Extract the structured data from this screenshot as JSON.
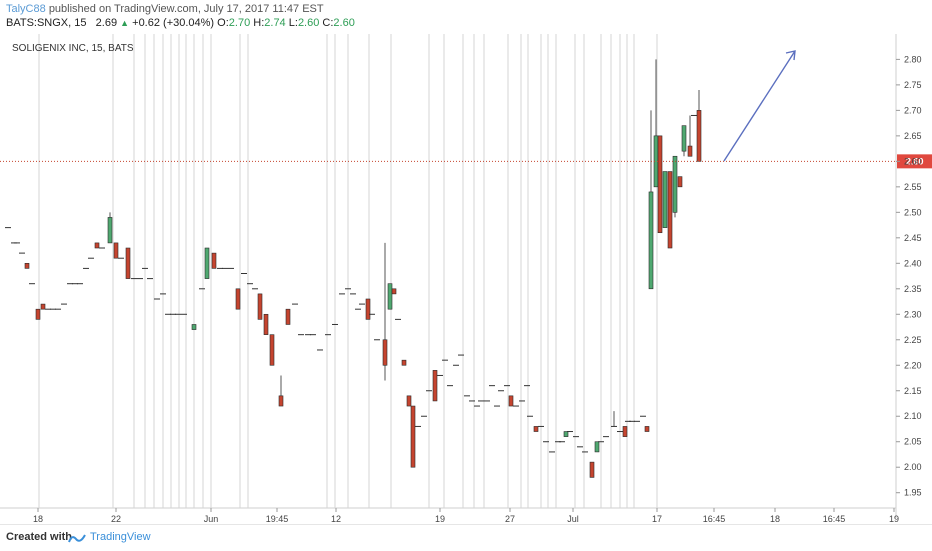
{
  "header": {
    "author": "TalyC88",
    "published": "published on TradingView.com, July 17, 2017 11:47 EST",
    "symbol": "BATS:SNGX, 15",
    "last": "2.69",
    "change": "+0.62 (+30.04%)",
    "o_label": "O:",
    "o_val": "2.70",
    "h_label": "H:",
    "h_val": "2.74",
    "l_label": "L:",
    "l_val": "2.60",
    "c_label": "C:",
    "c_val": "2.60"
  },
  "footer": {
    "created": "Created with",
    "brand": "TradingView"
  },
  "chart_data": {
    "type": "candlestick",
    "title": "SOLIGENIX INC, 15, BATS",
    "ylim": [
      1.92,
      2.84
    ],
    "y_ticks": [
      1.95,
      2.0,
      2.05,
      2.1,
      2.15,
      2.2,
      2.25,
      2.3,
      2.35,
      2.4,
      2.45,
      2.5,
      2.55,
      2.6,
      2.65,
      2.7,
      2.75,
      2.8
    ],
    "x_ticks": [
      "18",
      "22",
      "Jun",
      "19:45",
      "12",
      "19",
      "27",
      "Jul",
      "17",
      "16:45",
      "18",
      "16:45",
      "19"
    ],
    "current_price": "2.60",
    "colors": {
      "up": "#4fa870",
      "down": "#c5442f",
      "line": "#c5442f",
      "arrow": "#5b6fbf",
      "session": "#d4d4d4",
      "label_bg": "#e0483e"
    },
    "candles": [
      {
        "o": 2.47,
        "h": 2.47,
        "l": 2.47,
        "c": 2.47
      },
      {
        "o": 2.44,
        "h": 2.44,
        "l": 2.44,
        "c": 2.44
      },
      {
        "o": 2.44,
        "h": 2.44,
        "l": 2.44,
        "c": 2.44
      },
      {
        "o": 2.42,
        "h": 2.42,
        "l": 2.42,
        "c": 2.42
      },
      {
        "o": 2.4,
        "h": 2.4,
        "l": 2.39,
        "c": 2.39
      },
      {
        "o": 2.36,
        "h": 2.36,
        "l": 2.36,
        "c": 2.36
      },
      {
        "o": 2.31,
        "h": 2.31,
        "l": 2.29,
        "c": 2.29
      },
      {
        "o": 2.32,
        "h": 2.32,
        "l": 2.31,
        "c": 2.31
      },
      {
        "o": 2.31,
        "h": 2.31,
        "l": 2.31,
        "c": 2.31
      },
      {
        "o": 2.31,
        "h": 2.31,
        "l": 2.31,
        "c": 2.31
      },
      {
        "o": 2.31,
        "h": 2.31,
        "l": 2.31,
        "c": 2.31
      },
      {
        "o": 2.32,
        "h": 2.32,
        "l": 2.32,
        "c": 2.32
      },
      {
        "o": 2.36,
        "h": 2.36,
        "l": 2.36,
        "c": 2.36
      },
      {
        "o": 2.36,
        "h": 2.36,
        "l": 2.36,
        "c": 2.36
      },
      {
        "o": 2.36,
        "h": 2.36,
        "l": 2.36,
        "c": 2.36
      },
      {
        "o": 2.39,
        "h": 2.39,
        "l": 2.39,
        "c": 2.39
      },
      {
        "o": 2.41,
        "h": 2.41,
        "l": 2.41,
        "c": 2.41
      },
      {
        "o": 2.44,
        "h": 2.44,
        "l": 2.43,
        "c": 2.43
      },
      {
        "o": 2.43,
        "h": 2.43,
        "l": 2.43,
        "c": 2.43
      },
      {
        "o": 2.44,
        "h": 2.5,
        "l": 2.44,
        "c": 2.49
      },
      {
        "o": 2.44,
        "h": 2.44,
        "l": 2.41,
        "c": 2.41
      },
      {
        "o": 2.41,
        "h": 2.41,
        "l": 2.41,
        "c": 2.41
      },
      {
        "o": 2.43,
        "h": 2.43,
        "l": 2.37,
        "c": 2.37
      },
      {
        "o": 2.37,
        "h": 2.37,
        "l": 2.37,
        "c": 2.37
      },
      {
        "o": 2.37,
        "h": 2.37,
        "l": 2.37,
        "c": 2.37
      },
      {
        "o": 2.39,
        "h": 2.39,
        "l": 2.39,
        "c": 2.39
      },
      {
        "o": 2.37,
        "h": 2.37,
        "l": 2.37,
        "c": 2.37
      },
      {
        "o": 2.33,
        "h": 2.33,
        "l": 2.33,
        "c": 2.33
      },
      {
        "o": 2.34,
        "h": 2.34,
        "l": 2.34,
        "c": 2.34
      },
      {
        "o": 2.3,
        "h": 2.3,
        "l": 2.3,
        "c": 2.3
      },
      {
        "o": 2.3,
        "h": 2.3,
        "l": 2.3,
        "c": 2.3
      },
      {
        "o": 2.3,
        "h": 2.3,
        "l": 2.3,
        "c": 2.3
      },
      {
        "o": 2.3,
        "h": 2.3,
        "l": 2.3,
        "c": 2.3
      },
      {
        "o": 2.27,
        "h": 2.28,
        "l": 2.27,
        "c": 2.28
      },
      {
        "o": 2.35,
        "h": 2.35,
        "l": 2.35,
        "c": 2.35
      },
      {
        "o": 2.37,
        "h": 2.43,
        "l": 2.37,
        "c": 2.43
      },
      {
        "o": 2.42,
        "h": 2.42,
        "l": 2.39,
        "c": 2.39
      },
      {
        "o": 2.39,
        "h": 2.39,
        "l": 2.39,
        "c": 2.39
      },
      {
        "o": 2.39,
        "h": 2.39,
        "l": 2.39,
        "c": 2.39
      },
      {
        "o": 2.39,
        "h": 2.39,
        "l": 2.39,
        "c": 2.39
      },
      {
        "o": 2.35,
        "h": 2.35,
        "l": 2.31,
        "c": 2.31
      },
      {
        "o": 2.38,
        "h": 2.38,
        "l": 2.38,
        "c": 2.38
      },
      {
        "o": 2.36,
        "h": 2.36,
        "l": 2.36,
        "c": 2.36
      },
      {
        "o": 2.35,
        "h": 2.35,
        "l": 2.35,
        "c": 2.35
      },
      {
        "o": 2.34,
        "h": 2.34,
        "l": 2.29,
        "c": 2.29
      },
      {
        "o": 2.3,
        "h": 2.3,
        "l": 2.26,
        "c": 2.26
      },
      {
        "o": 2.26,
        "h": 2.26,
        "l": 2.2,
        "c": 2.2
      },
      {
        "o": 2.14,
        "h": 2.18,
        "l": 2.12,
        "c": 2.12
      },
      {
        "o": 2.31,
        "h": 2.31,
        "l": 2.28,
        "c": 2.28
      },
      {
        "o": 2.32,
        "h": 2.32,
        "l": 2.32,
        "c": 2.32
      },
      {
        "o": 2.26,
        "h": 2.26,
        "l": 2.26,
        "c": 2.26
      },
      {
        "o": 2.26,
        "h": 2.26,
        "l": 2.26,
        "c": 2.26
      },
      {
        "o": 2.26,
        "h": 2.26,
        "l": 2.26,
        "c": 2.26
      },
      {
        "o": 2.23,
        "h": 2.23,
        "l": 2.23,
        "c": 2.23
      },
      {
        "o": 2.26,
        "h": 2.26,
        "l": 2.26,
        "c": 2.26
      },
      {
        "o": 2.28,
        "h": 2.28,
        "l": 2.28,
        "c": 2.28
      },
      {
        "o": 2.34,
        "h": 2.34,
        "l": 2.34,
        "c": 2.34
      },
      {
        "o": 2.35,
        "h": 2.35,
        "l": 2.35,
        "c": 2.35
      },
      {
        "o": 2.34,
        "h": 2.34,
        "l": 2.34,
        "c": 2.34
      },
      {
        "o": 2.31,
        "h": 2.31,
        "l": 2.31,
        "c": 2.31
      },
      {
        "o": 2.32,
        "h": 2.32,
        "l": 2.32,
        "c": 2.32
      },
      {
        "o": 2.33,
        "h": 2.33,
        "l": 2.29,
        "c": 2.29
      },
      {
        "o": 2.3,
        "h": 2.3,
        "l": 2.3,
        "c": 2.3
      },
      {
        "o": 2.25,
        "h": 2.25,
        "l": 2.25,
        "c": 2.25
      },
      {
        "o": 2.25,
        "h": 2.44,
        "l": 2.17,
        "c": 2.2
      },
      {
        "o": 2.31,
        "h": 2.36,
        "l": 2.31,
        "c": 2.36
      },
      {
        "o": 2.35,
        "h": 2.35,
        "l": 2.34,
        "c": 2.34
      },
      {
        "o": 2.29,
        "h": 2.29,
        "l": 2.29,
        "c": 2.29
      },
      {
        "o": 2.21,
        "h": 2.21,
        "l": 2.2,
        "c": 2.2
      },
      {
        "o": 2.14,
        "h": 2.14,
        "l": 2.12,
        "c": 2.12
      },
      {
        "o": 2.12,
        "h": 2.12,
        "l": 2.0,
        "c": 2.0
      },
      {
        "o": 2.08,
        "h": 2.08,
        "l": 2.08,
        "c": 2.08
      },
      {
        "o": 2.1,
        "h": 2.1,
        "l": 2.1,
        "c": 2.1
      },
      {
        "o": 2.15,
        "h": 2.15,
        "l": 2.15,
        "c": 2.15
      },
      {
        "o": 2.19,
        "h": 2.19,
        "l": 2.13,
        "c": 2.13
      },
      {
        "o": 2.18,
        "h": 2.18,
        "l": 2.18,
        "c": 2.18
      },
      {
        "o": 2.21,
        "h": 2.21,
        "l": 2.21,
        "c": 2.21
      },
      {
        "o": 2.16,
        "h": 2.16,
        "l": 2.16,
        "c": 2.16
      },
      {
        "o": 2.2,
        "h": 2.2,
        "l": 2.2,
        "c": 2.2
      },
      {
        "o": 2.22,
        "h": 2.22,
        "l": 2.22,
        "c": 2.22
      },
      {
        "o": 2.14,
        "h": 2.14,
        "l": 2.14,
        "c": 2.14
      },
      {
        "o": 2.13,
        "h": 2.13,
        "l": 2.13,
        "c": 2.13
      },
      {
        "o": 2.12,
        "h": 2.12,
        "l": 2.12,
        "c": 2.12
      },
      {
        "o": 2.13,
        "h": 2.13,
        "l": 2.13,
        "c": 2.13
      },
      {
        "o": 2.13,
        "h": 2.13,
        "l": 2.13,
        "c": 2.13
      },
      {
        "o": 2.16,
        "h": 2.16,
        "l": 2.16,
        "c": 2.16
      },
      {
        "o": 2.12,
        "h": 2.12,
        "l": 2.12,
        "c": 2.12
      },
      {
        "o": 2.15,
        "h": 2.15,
        "l": 2.15,
        "c": 2.15
      },
      {
        "o": 2.16,
        "h": 2.16,
        "l": 2.16,
        "c": 2.16
      },
      {
        "o": 2.14,
        "h": 2.14,
        "l": 2.12,
        "c": 2.12
      },
      {
        "o": 2.12,
        "h": 2.12,
        "l": 2.12,
        "c": 2.12
      },
      {
        "o": 2.13,
        "h": 2.13,
        "l": 2.13,
        "c": 2.13
      },
      {
        "o": 2.16,
        "h": 2.16,
        "l": 2.16,
        "c": 2.16
      },
      {
        "o": 2.1,
        "h": 2.1,
        "l": 2.1,
        "c": 2.1
      },
      {
        "o": 2.08,
        "h": 2.08,
        "l": 2.07,
        "c": 2.07
      },
      {
        "o": 2.08,
        "h": 2.08,
        "l": 2.08,
        "c": 2.08
      },
      {
        "o": 2.05,
        "h": 2.05,
        "l": 2.05,
        "c": 2.05
      },
      {
        "o": 2.03,
        "h": 2.03,
        "l": 2.03,
        "c": 2.03
      },
      {
        "o": 2.05,
        "h": 2.05,
        "l": 2.05,
        "c": 2.05
      },
      {
        "o": 2.05,
        "h": 2.05,
        "l": 2.05,
        "c": 2.05
      },
      {
        "o": 2.06,
        "h": 2.07,
        "l": 2.06,
        "c": 2.07
      },
      {
        "o": 2.07,
        "h": 2.07,
        "l": 2.07,
        "c": 2.07
      },
      {
        "o": 2.06,
        "h": 2.06,
        "l": 2.06,
        "c": 2.06
      },
      {
        "o": 2.04,
        "h": 2.04,
        "l": 2.04,
        "c": 2.04
      },
      {
        "o": 2.03,
        "h": 2.03,
        "l": 2.03,
        "c": 2.03
      },
      {
        "o": 2.01,
        "h": 2.01,
        "l": 1.98,
        "c": 1.98
      },
      {
        "o": 2.03,
        "h": 2.05,
        "l": 2.03,
        "c": 2.05
      },
      {
        "o": 2.05,
        "h": 2.05,
        "l": 2.05,
        "c": 2.05
      },
      {
        "o": 2.06,
        "h": 2.06,
        "l": 2.06,
        "c": 2.06
      },
      {
        "o": 2.08,
        "h": 2.11,
        "l": 2.08,
        "c": 2.08
      },
      {
        "o": 2.07,
        "h": 2.07,
        "l": 2.07,
        "c": 2.07
      },
      {
        "o": 2.08,
        "h": 2.08,
        "l": 2.06,
        "c": 2.06
      },
      {
        "o": 2.09,
        "h": 2.09,
        "l": 2.09,
        "c": 2.09
      },
      {
        "o": 2.09,
        "h": 2.09,
        "l": 2.09,
        "c": 2.09
      },
      {
        "o": 2.09,
        "h": 2.09,
        "l": 2.09,
        "c": 2.09
      },
      {
        "o": 2.1,
        "h": 2.1,
        "l": 2.1,
        "c": 2.1
      },
      {
        "o": 2.08,
        "h": 2.08,
        "l": 2.07,
        "c": 2.07
      },
      {
        "o": 2.35,
        "h": 2.7,
        "l": 2.35,
        "c": 2.54
      },
      {
        "o": 2.55,
        "h": 2.8,
        "l": 2.55,
        "c": 2.65
      },
      {
        "o": 2.65,
        "h": 2.65,
        "l": 2.46,
        "c": 2.46
      },
      {
        "o": 2.47,
        "h": 2.58,
        "l": 2.47,
        "c": 2.58
      },
      {
        "o": 2.58,
        "h": 2.58,
        "l": 2.43,
        "c": 2.43
      },
      {
        "o": 2.5,
        "h": 2.61,
        "l": 2.49,
        "c": 2.61
      },
      {
        "o": 2.57,
        "h": 2.57,
        "l": 2.55,
        "c": 2.55
      },
      {
        "o": 2.62,
        "h": 2.67,
        "l": 2.61,
        "c": 2.67
      },
      {
        "o": 2.63,
        "h": 2.69,
        "l": 2.61,
        "c": 2.61
      },
      {
        "o": 2.69,
        "h": 2.69,
        "l": 2.69,
        "c": 2.69
      },
      {
        "o": 2.7,
        "h": 2.74,
        "l": 2.6,
        "c": 2.6
      }
    ]
  }
}
